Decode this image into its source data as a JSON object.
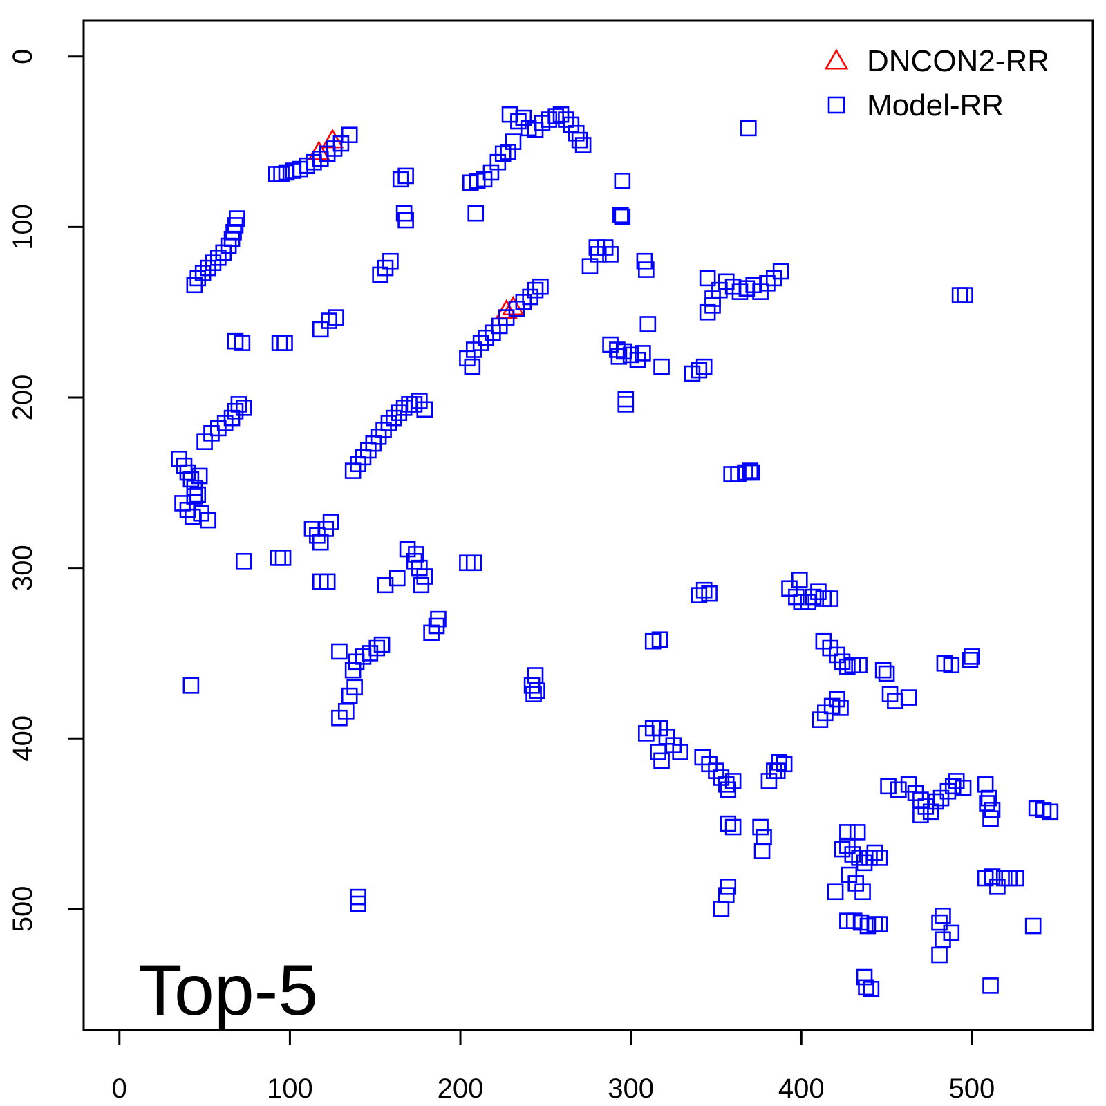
{
  "chart_data": {
    "type": "scatter",
    "title": "",
    "xlabel": "",
    "ylabel": "",
    "annotation": "Top-5",
    "xlim": [
      -21,
      571
    ],
    "ylim": [
      -21,
      571
    ],
    "y_inverted": true,
    "x_ticks": [
      "0",
      "100",
      "200",
      "300",
      "400",
      "500"
    ],
    "y_ticks": [
      "0",
      "100",
      "200",
      "300",
      "400",
      "500"
    ],
    "grid": false,
    "legend_position": "top-right",
    "series": [
      {
        "name": "DNCON2-RR",
        "marker": "triangle",
        "color": "#ff0000",
        "points": [
          [
            117,
            56
          ],
          [
            125,
            49
          ],
          [
            227,
            149
          ],
          [
            231,
            147
          ]
        ]
      },
      {
        "name": "Model-RR",
        "marker": "square",
        "color": "#0000ff",
        "points": [
          [
            92,
            69
          ],
          [
            95,
            69
          ],
          [
            98,
            68
          ],
          [
            102,
            67
          ],
          [
            106,
            66
          ],
          [
            110,
            64
          ],
          [
            114,
            62
          ],
          [
            118,
            60
          ],
          [
            122,
            57
          ],
          [
            126,
            54
          ],
          [
            130,
            51
          ],
          [
            135,
            46
          ],
          [
            44,
            134
          ],
          [
            46,
            130
          ],
          [
            49,
            127
          ],
          [
            52,
            124
          ],
          [
            55,
            121
          ],
          [
            58,
            118
          ],
          [
            61,
            115
          ],
          [
            64,
            111
          ],
          [
            66,
            107
          ],
          [
            67,
            103
          ],
          [
            68,
            99
          ],
          [
            69,
            95
          ],
          [
            35,
            236
          ],
          [
            38,
            240
          ],
          [
            40,
            244
          ],
          [
            42,
            248
          ],
          [
            44,
            253
          ],
          [
            46,
            257
          ],
          [
            37,
            262
          ],
          [
            40,
            266
          ],
          [
            43,
            270
          ],
          [
            48,
            268
          ],
          [
            52,
            272
          ],
          [
            44,
            258
          ],
          [
            47,
            246
          ],
          [
            50,
            226
          ],
          [
            54,
            221
          ],
          [
            58,
            218
          ],
          [
            62,
            215
          ],
          [
            66,
            212
          ],
          [
            68,
            208
          ],
          [
            70,
            204
          ],
          [
            73,
            206
          ],
          [
            137,
            243
          ],
          [
            140,
            239
          ],
          [
            143,
            235
          ],
          [
            146,
            231
          ],
          [
            149,
            227
          ],
          [
            152,
            223
          ],
          [
            155,
            219
          ],
          [
            158,
            215
          ],
          [
            161,
            212
          ],
          [
            164,
            209
          ],
          [
            167,
            206
          ],
          [
            170,
            204
          ],
          [
            173,
            204
          ],
          [
            176,
            202
          ],
          [
            179,
            207
          ],
          [
            168,
            70
          ],
          [
            167,
            92
          ],
          [
            168,
            96
          ],
          [
            165,
            72
          ],
          [
            153,
            128
          ],
          [
            156,
            124
          ],
          [
            159,
            120
          ],
          [
            118,
            160
          ],
          [
            123,
            155
          ],
          [
            127,
            153
          ],
          [
            68,
            167
          ],
          [
            72,
            168
          ],
          [
            94,
            168
          ],
          [
            97,
            168
          ],
          [
            113,
            277
          ],
          [
            116,
            281
          ],
          [
            118,
            285
          ],
          [
            121,
            277
          ],
          [
            124,
            273
          ],
          [
            73,
            296
          ],
          [
            93,
            294
          ],
          [
            96,
            294
          ],
          [
            118,
            308
          ],
          [
            122,
            308
          ],
          [
            174,
            292
          ],
          [
            169,
            289
          ],
          [
            173,
            296
          ],
          [
            176,
            300
          ],
          [
            179,
            305
          ],
          [
            177,
            310
          ],
          [
            156,
            310
          ],
          [
            163,
            306
          ],
          [
            183,
            338
          ],
          [
            186,
            334
          ],
          [
            187,
            330
          ],
          [
            129,
            388
          ],
          [
            133,
            384
          ],
          [
            135,
            375
          ],
          [
            138,
            370
          ],
          [
            137,
            360
          ],
          [
            139,
            355
          ],
          [
            143,
            352
          ],
          [
            147,
            350
          ],
          [
            151,
            347
          ],
          [
            154,
            345
          ],
          [
            129,
            349
          ],
          [
            42,
            369
          ],
          [
            140,
            497
          ],
          [
            140,
            493
          ],
          [
            209,
            92
          ],
          [
            206,
            74
          ],
          [
            210,
            73
          ],
          [
            214,
            72
          ],
          [
            218,
            68
          ],
          [
            222,
            62
          ],
          [
            225,
            57
          ],
          [
            228,
            56
          ],
          [
            231,
            50
          ],
          [
            229,
            34
          ],
          [
            234,
            38
          ],
          [
            237,
            36
          ],
          [
            240,
            42
          ],
          [
            244,
            43
          ],
          [
            248,
            39
          ],
          [
            252,
            37
          ],
          [
            256,
            35
          ],
          [
            259,
            34
          ],
          [
            262,
            37
          ],
          [
            265,
            40
          ],
          [
            268,
            45
          ],
          [
            270,
            49
          ],
          [
            272,
            52
          ],
          [
            204,
            177
          ],
          [
            208,
            172
          ],
          [
            212,
            168
          ],
          [
            215,
            165
          ],
          [
            219,
            162
          ],
          [
            223,
            158
          ],
          [
            227,
            153
          ],
          [
            233,
            148
          ],
          [
            237,
            144
          ],
          [
            241,
            141
          ],
          [
            244,
            137
          ],
          [
            247,
            135
          ],
          [
            207,
            182
          ],
          [
            204,
            297
          ],
          [
            208,
            297
          ],
          [
            244,
            363
          ],
          [
            245,
            372
          ],
          [
            242,
            369
          ],
          [
            243,
            374
          ],
          [
            295,
            73
          ],
          [
            294,
            93
          ],
          [
            295,
            94
          ],
          [
            276,
            123
          ],
          [
            281,
            116
          ],
          [
            285,
            112
          ],
          [
            288,
            116
          ],
          [
            280,
            112
          ],
          [
            308,
            120
          ],
          [
            309,
            125
          ],
          [
            288,
            169
          ],
          [
            292,
            172
          ],
          [
            296,
            173
          ],
          [
            300,
            175
          ],
          [
            304,
            178
          ],
          [
            307,
            174
          ],
          [
            310,
            157
          ],
          [
            318,
            182
          ],
          [
            293,
            176
          ],
          [
            297,
            204
          ],
          [
            297,
            201
          ],
          [
            336,
            186
          ],
          [
            340,
            184
          ],
          [
            343,
            182
          ],
          [
            345,
            130
          ],
          [
            348,
            142
          ],
          [
            352,
            137
          ],
          [
            356,
            132
          ],
          [
            360,
            135
          ],
          [
            364,
            138
          ],
          [
            368,
            136
          ],
          [
            372,
            134
          ],
          [
            376,
            138
          ],
          [
            380,
            133
          ],
          [
            384,
            130
          ],
          [
            388,
            126
          ],
          [
            345,
            150
          ],
          [
            348,
            146
          ],
          [
            369,
            42
          ],
          [
            359,
            245
          ],
          [
            363,
            245
          ],
          [
            367,
            244
          ],
          [
            371,
            244
          ],
          [
            370,
            243
          ],
          [
            309,
            397
          ],
          [
            313,
            394
          ],
          [
            317,
            394
          ],
          [
            321,
            399
          ],
          [
            325,
            404
          ],
          [
            318,
            413
          ],
          [
            316,
            408
          ],
          [
            329,
            408
          ],
          [
            313,
            343
          ],
          [
            317,
            342
          ],
          [
            340,
            316
          ],
          [
            343,
            313
          ],
          [
            346,
            315
          ],
          [
            342,
            411
          ],
          [
            346,
            415
          ],
          [
            350,
            419
          ],
          [
            353,
            423
          ],
          [
            356,
            427
          ],
          [
            360,
            425
          ],
          [
            357,
            430
          ],
          [
            357,
            450
          ],
          [
            360,
            452
          ],
          [
            376,
            452
          ],
          [
            378,
            458
          ],
          [
            377,
            466
          ],
          [
            381,
            425
          ],
          [
            384,
            419
          ],
          [
            387,
            414
          ],
          [
            390,
            415
          ],
          [
            386,
            419
          ],
          [
            353,
            500
          ],
          [
            356,
            492
          ],
          [
            357,
            487
          ],
          [
            393,
            312
          ],
          [
            397,
            317
          ],
          [
            400,
            320
          ],
          [
            404,
            320
          ],
          [
            407,
            317
          ],
          [
            410,
            314
          ],
          [
            413,
            318
          ],
          [
            417,
            318
          ],
          [
            399,
            307
          ],
          [
            413,
            343
          ],
          [
            417,
            347
          ],
          [
            421,
            351
          ],
          [
            424,
            355
          ],
          [
            427,
            358
          ],
          [
            430,
            357
          ],
          [
            434,
            357
          ],
          [
            448,
            360
          ],
          [
            450,
            362
          ],
          [
            452,
            374
          ],
          [
            455,
            378
          ],
          [
            463,
            376
          ],
          [
            411,
            389
          ],
          [
            414,
            385
          ],
          [
            418,
            381
          ],
          [
            421,
            377
          ],
          [
            423,
            382
          ],
          [
            451,
            428
          ],
          [
            457,
            430
          ],
          [
            463,
            427
          ],
          [
            467,
            432
          ],
          [
            470,
            436
          ],
          [
            473,
            440
          ],
          [
            476,
            443
          ],
          [
            479,
            437
          ],
          [
            482,
            435
          ],
          [
            486,
            431
          ],
          [
            489,
            428
          ],
          [
            491,
            425
          ],
          [
            495,
            429
          ],
          [
            470,
            445
          ],
          [
            424,
            465
          ],
          [
            427,
            463
          ],
          [
            430,
            468
          ],
          [
            434,
            470
          ],
          [
            437,
            473
          ],
          [
            440,
            470
          ],
          [
            443,
            467
          ],
          [
            446,
            470
          ],
          [
            428,
            480
          ],
          [
            432,
            485
          ],
          [
            436,
            490
          ],
          [
            433,
            455
          ],
          [
            420,
            490
          ],
          [
            427,
            455
          ],
          [
            427,
            507
          ],
          [
            431,
            507
          ],
          [
            435,
            508
          ],
          [
            439,
            510
          ],
          [
            443,
            509
          ],
          [
            446,
            509
          ],
          [
            437,
            540
          ],
          [
            441,
            547
          ],
          [
            438,
            546
          ],
          [
            481,
            508
          ],
          [
            483,
            518
          ],
          [
            481,
            527
          ],
          [
            488,
            514
          ],
          [
            483,
            504
          ],
          [
            484,
            356
          ],
          [
            488,
            357
          ],
          [
            499,
            354
          ],
          [
            500,
            352
          ],
          [
            508,
            427
          ],
          [
            510,
            435
          ],
          [
            512,
            442
          ],
          [
            511,
            447
          ],
          [
            509,
            438
          ],
          [
            508,
            482
          ],
          [
            512,
            481
          ],
          [
            515,
            487
          ],
          [
            519,
            482
          ],
          [
            522,
            482
          ],
          [
            526,
            482
          ],
          [
            511,
            545
          ],
          [
            536,
            510
          ],
          [
            538,
            441
          ],
          [
            542,
            442
          ],
          [
            546,
            443
          ],
          [
            493,
            140
          ],
          [
            496,
            140
          ]
        ]
      }
    ]
  }
}
